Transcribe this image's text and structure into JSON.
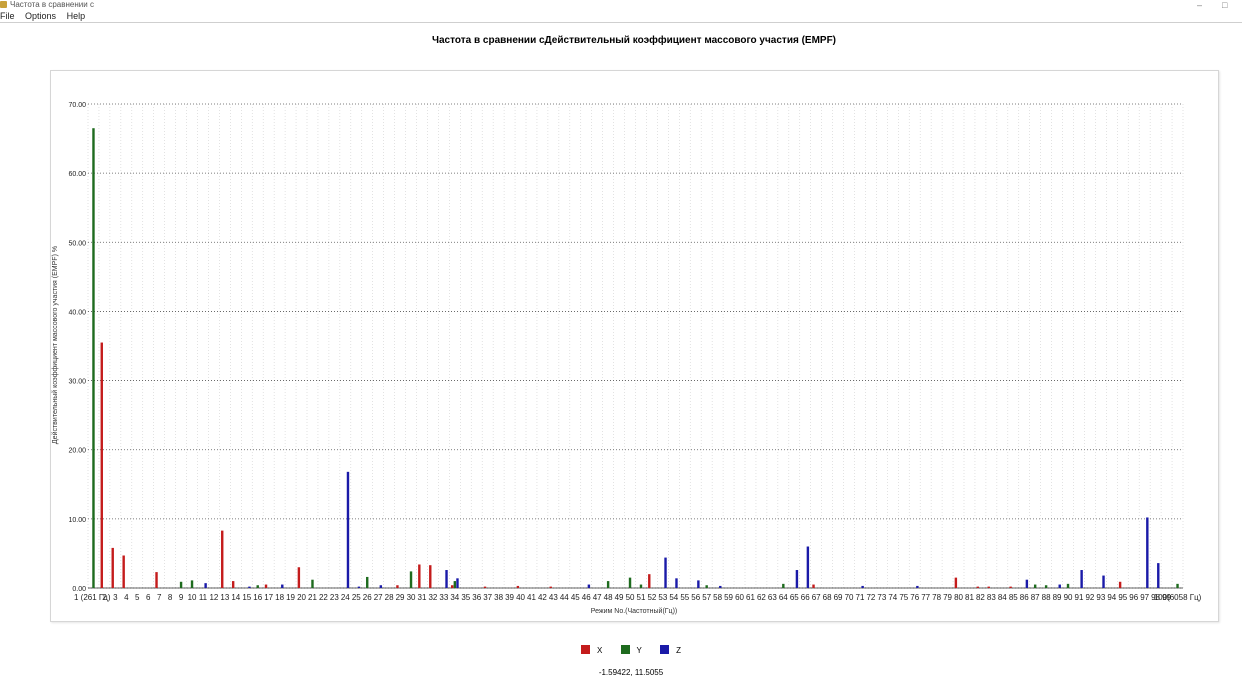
{
  "window": {
    "title": "Частота в сравнении с",
    "menu": [
      "File",
      "Options",
      "Help"
    ]
  },
  "colors": {
    "X": "#c41c1c",
    "Y": "#1e6b1e",
    "Z": "#1a1aa8",
    "grid": "#999999"
  },
  "cursor_readout": "-1.59422, 11.5055",
  "chart_data": {
    "type": "bar",
    "title": "Частота в сравнении сДействительный коэффициент массового участия (EMPF)",
    "xlabel": "Режим No.(Частотный(Гц))",
    "ylabel": "Действительный коэффициент массового участия (EMPF) %",
    "ylim": [
      0,
      70
    ],
    "yticks": [
      "0.00",
      "10.00",
      "20.00",
      "30.00",
      "40.00",
      "50.00",
      "60.00",
      "70.00"
    ],
    "grid": true,
    "legend_position": "bottom-center",
    "first_category_label": "1 (261 Гц)",
    "last_category_label": "100(6058 Гц)",
    "categories": [
      "1",
      "2",
      "3",
      "4",
      "5",
      "6",
      "7",
      "8",
      "9",
      "10",
      "11",
      "12",
      "13",
      "14",
      "15",
      "16",
      "17",
      "18",
      "19",
      "20",
      "21",
      "22",
      "23",
      "24",
      "25",
      "26",
      "27",
      "28",
      "29",
      "30",
      "31",
      "32",
      "33",
      "34",
      "35",
      "36",
      "37",
      "38",
      "39",
      "40",
      "41",
      "42",
      "43",
      "44",
      "45",
      "46",
      "47",
      "48",
      "49",
      "50",
      "51",
      "52",
      "53",
      "54",
      "55",
      "56",
      "57",
      "58",
      "59",
      "60",
      "61",
      "62",
      "63",
      "64",
      "65",
      "66",
      "67",
      "68",
      "69",
      "70",
      "71",
      "72",
      "73",
      "74",
      "75",
      "76",
      "77",
      "78",
      "79",
      "80",
      "81",
      "82",
      "83",
      "84",
      "85",
      "86",
      "87",
      "88",
      "89",
      "90",
      "91",
      "92",
      "93",
      "94",
      "95",
      "96",
      "97",
      "98",
      "99",
      "100"
    ],
    "series": [
      {
        "name": "X",
        "values": [
          0,
          35.5,
          5.8,
          4.7,
          0,
          0,
          2.3,
          0,
          0,
          0,
          0,
          0,
          8.3,
          1.0,
          0,
          0,
          0.5,
          0,
          0,
          3.0,
          0,
          0,
          0,
          0,
          0,
          0,
          0,
          0,
          0.4,
          0,
          3.4,
          3.3,
          0,
          0.4,
          0,
          0,
          0.2,
          0,
          0,
          0.3,
          0,
          0,
          0.2,
          0,
          0,
          0,
          0,
          0,
          0,
          0,
          0,
          2.0,
          0,
          0,
          0,
          0,
          0,
          0,
          0,
          0,
          0,
          0,
          0,
          0,
          0,
          0,
          0.5,
          0,
          0,
          0,
          0,
          0,
          0,
          0,
          0,
          0,
          0,
          0,
          0,
          1.5,
          0,
          0.2,
          0.2,
          0,
          0.2,
          0,
          0,
          0,
          0,
          0,
          0,
          0,
          0,
          0,
          0.9,
          0,
          0,
          0,
          0,
          0
        ]
      },
      {
        "name": "Y",
        "values": [
          66.5,
          0,
          0,
          0,
          0,
          0,
          0,
          0,
          0.9,
          1.1,
          0,
          0,
          0,
          0,
          0,
          0.4,
          0,
          0,
          0,
          0,
          1.2,
          0,
          0,
          0,
          0,
          1.6,
          0,
          0,
          0,
          2.4,
          0,
          0,
          0,
          1.0,
          0,
          0,
          0,
          0,
          0,
          0,
          0,
          0,
          0,
          0,
          0,
          0,
          0,
          1.0,
          0,
          1.5,
          0.5,
          0,
          0,
          0,
          0,
          0,
          0.4,
          0,
          0,
          0,
          0,
          0,
          0,
          0.6,
          0,
          0,
          0,
          0,
          0,
          0,
          0,
          0,
          0,
          0,
          0,
          0,
          0,
          0,
          0,
          0,
          0,
          0,
          0,
          0,
          0,
          0,
          0.5,
          0.4,
          0,
          0.6,
          0,
          0,
          0,
          0,
          0,
          0,
          0,
          0,
          0,
          0.6
        ]
      },
      {
        "name": "Z",
        "values": [
          0,
          0,
          0,
          0,
          0,
          0,
          0,
          0,
          0,
          0,
          0.7,
          0,
          0,
          0,
          0.2,
          0,
          0,
          0.5,
          0,
          0,
          0,
          0,
          0,
          16.8,
          0.2,
          0,
          0.4,
          0,
          0,
          0,
          0,
          0,
          2.6,
          1.4,
          0,
          0,
          0,
          0,
          0,
          0,
          0,
          0,
          0,
          0,
          0,
          0.5,
          0,
          0,
          0,
          0,
          0,
          0,
          4.4,
          1.4,
          0,
          1.1,
          0,
          0.3,
          0,
          0,
          0,
          0,
          0,
          0,
          2.6,
          6.0,
          0,
          0,
          0,
          0,
          0.3,
          0,
          0,
          0,
          0,
          0.3,
          0,
          0,
          0,
          0,
          0,
          0,
          0,
          0,
          0,
          1.2,
          0,
          0,
          0.5,
          0,
          2.6,
          0,
          1.8,
          0,
          0,
          0,
          10.2,
          3.6,
          0,
          0
        ]
      }
    ]
  }
}
